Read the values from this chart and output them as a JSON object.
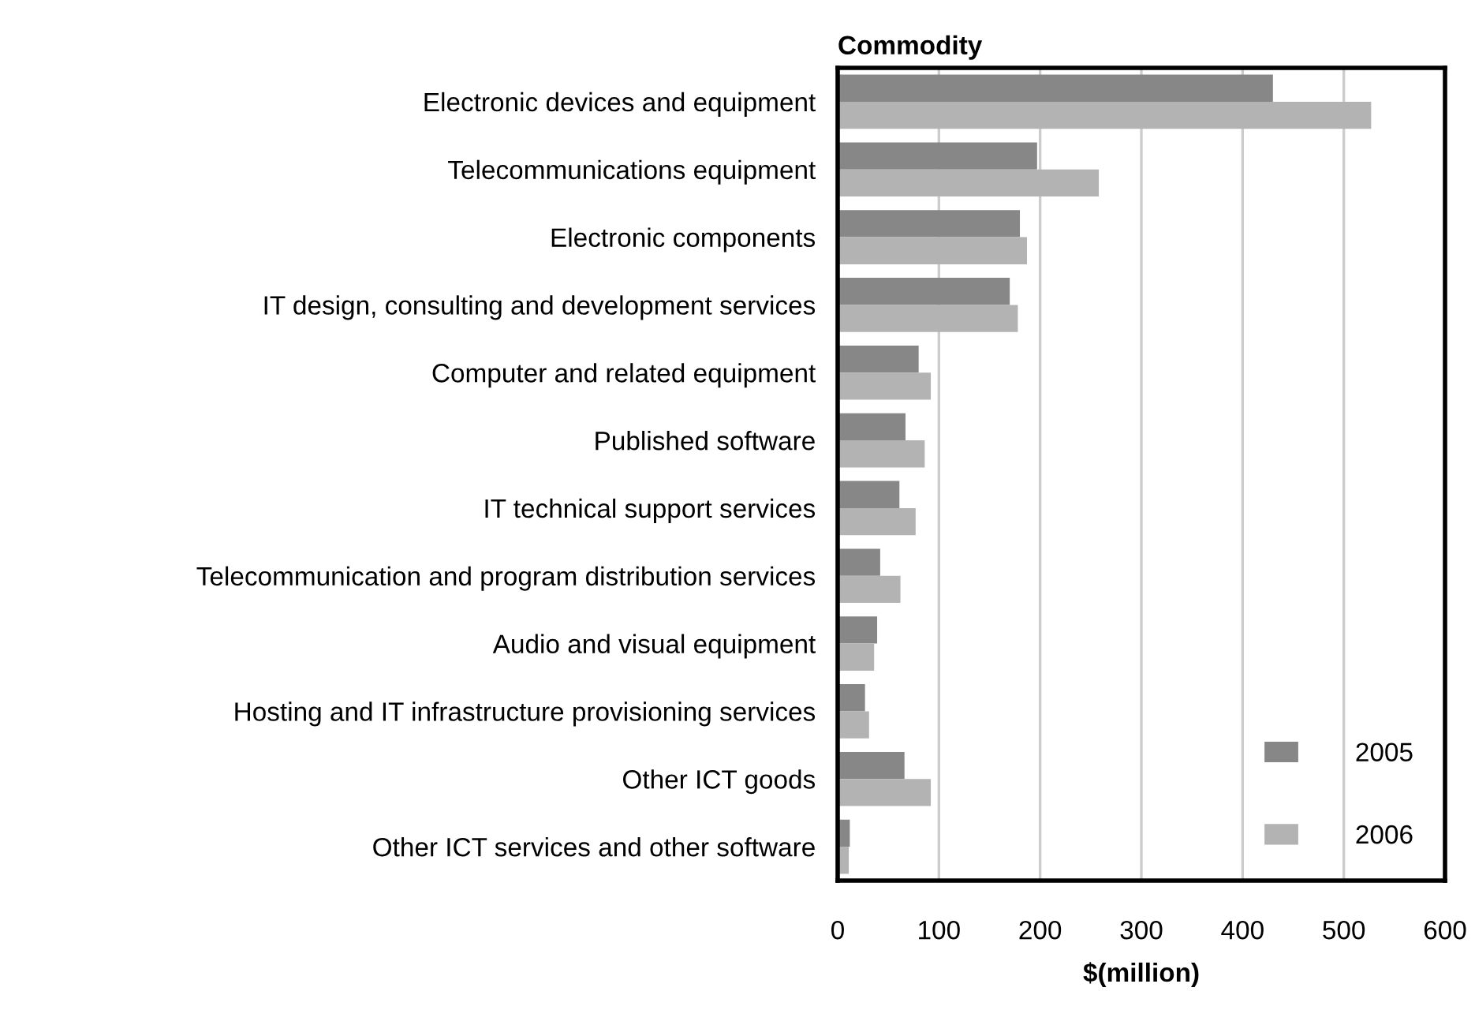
{
  "chart_data": {
    "type": "bar",
    "orientation": "horizontal",
    "ylabel": "Commodity",
    "xlabel": "$(million)",
    "categories": [
      "Electronic devices and equipment",
      "Telecommunications equipment",
      "Electronic components",
      "IT design, consulting and development services",
      "Computer and related equipment",
      "Published software",
      "IT technical support services",
      "Telecommunication and program distribution services",
      "Audio and visual equipment",
      "Hosting and IT infrastructure provisioning services",
      "Other ICT goods",
      "Other ICT services and other software"
    ],
    "series": [
      {
        "name": "2005",
        "color": "#878787",
        "values": [
          430,
          197,
          180,
          170,
          80,
          67,
          61,
          42,
          39,
          27,
          66,
          12
        ]
      },
      {
        "name": "2006",
        "color": "#b3b3b3",
        "values": [
          527,
          258,
          187,
          178,
          92,
          86,
          77,
          62,
          36,
          31,
          92,
          11
        ]
      }
    ],
    "xlim": [
      0,
      600
    ],
    "xticks": [
      0,
      100,
      200,
      300,
      400,
      500,
      600
    ],
    "grid": "x",
    "legend": "bottom right"
  }
}
